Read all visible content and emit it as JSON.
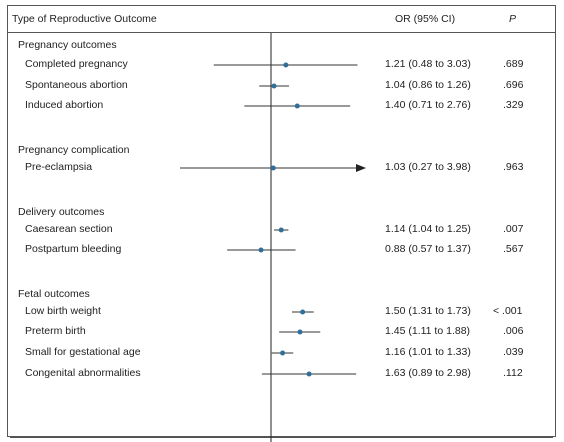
{
  "header": {
    "outcome_label": "Type of Reproductive Outcome",
    "or_label": "OR (95% CI)",
    "p_label": "P"
  },
  "colors": {
    "point": "#2f6f9a",
    "line": "#333333"
  },
  "chart_data": {
    "type": "forest",
    "xscale": "log",
    "reference_value": 1.0,
    "groups": [
      {
        "name": "Pregnancy outcomes",
        "rows": [
          {
            "label": "Completed pregnancy",
            "or": 1.21,
            "lo": 0.48,
            "hi": 3.03,
            "or_text": "1.21 (0.48 to 3.03)",
            "p": ".689"
          },
          {
            "label": "Spontaneous abortion",
            "or": 1.04,
            "lo": 0.86,
            "hi": 1.26,
            "or_text": "1.04 (0.86 to 1.26)",
            "p": ".696"
          },
          {
            "label": "Induced abortion",
            "or": 1.4,
            "lo": 0.71,
            "hi": 2.76,
            "or_text": "1.40 (0.71 to 2.76)",
            "p": ".329"
          }
        ]
      },
      {
        "name": "Pregnancy complication",
        "rows": [
          {
            "label": "Pre-eclampsia",
            "or": 1.03,
            "lo": 0.27,
            "hi": 3.98,
            "or_text": "1.03 (0.27 to 3.98)",
            "p": ".963",
            "arrow": true
          }
        ]
      },
      {
        "name": "Delivery outcomes",
        "rows": [
          {
            "label": "Caesarean section",
            "or": 1.14,
            "lo": 1.04,
            "hi": 1.25,
            "or_text": "1.14 (1.04 to 1.25)",
            "p": ".007"
          },
          {
            "label": "Postpartum bleeding",
            "or": 0.88,
            "lo": 0.57,
            "hi": 1.37,
            "or_text": "0.88 (0.57 to 1.37)",
            "p": ".567"
          }
        ]
      },
      {
        "name": "Fetal outcomes",
        "rows": [
          {
            "label": "Low birth weight",
            "or": 1.5,
            "lo": 1.31,
            "hi": 1.73,
            "or_text": "1.50 (1.31 to 1.73)",
            "p": "< .001"
          },
          {
            "label": "Preterm birth",
            "or": 1.45,
            "lo": 1.11,
            "hi": 1.88,
            "or_text": "1.45 (1.11 to 1.88)",
            "p": ".006"
          },
          {
            "label": "Small for gestational age",
            "or": 1.16,
            "lo": 1.01,
            "hi": 1.33,
            "or_text": "1.16 (1.01 to 1.33)",
            "p": ".039"
          },
          {
            "label": "Congenital abnormalities",
            "or": 1.63,
            "lo": 0.89,
            "hi": 2.98,
            "or_text": "1.63 (0.89 to 2.98)",
            "p": ".112"
          }
        ]
      }
    ]
  }
}
